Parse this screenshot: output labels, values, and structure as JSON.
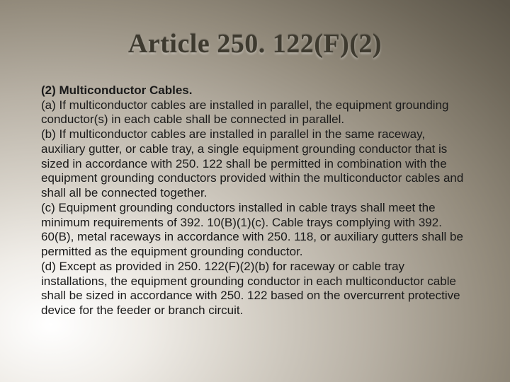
{
  "slide": {
    "title": "Article 250. 122(F)(2)",
    "heading": "(2) Multiconductor Cables.",
    "paragraphs": [
      "(a) If multiconductor cables are installed in parallel, the equipment grounding conductor(s) in each cable shall be connected in parallel.",
      "(b) If multiconductor cables are installed in parallel in the same raceway, auxiliary gutter, or cable tray, a single equipment grounding conductor that is sized in accordance with 250. 122 shall be permitted in combination with the equipment grounding conductors provided within the multiconductor cables and shall all be connected together.",
      "(c) Equipment grounding conductors installed in cable trays shall meet the minimum requirements of 392. 10(B)(1)(c). Cable trays complying with 392. 60(B), metal raceways in accordance with 250. 118, or auxiliary gutters shall be permitted as the equipment grounding conductor.",
      "(d) Except as provided in 250. 122(F)(2)(b) for raceway or cable tray installations, the equipment grounding conductor in each multiconductor cable shall be sized in accordance with 250. 122 based on the overcurrent protective device for the feeder or branch circuit."
    ]
  },
  "style": {
    "title_color": "#3e3a2f",
    "title_fontsize": 38,
    "body_fontsize": 17,
    "body_color": "#1a1a1a",
    "background_gradient_from": "#ffffff",
    "background_gradient_to": "#5a5448"
  }
}
